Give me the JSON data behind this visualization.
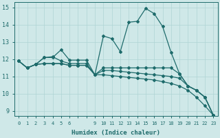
{
  "xlabel": "Humidex (Indice chaleur)",
  "bg_color": "#cfe8e8",
  "grid_color": "#afd4d4",
  "line_color": "#1e6b6b",
  "xlabels": [
    "0",
    "1",
    "2",
    "3",
    "4",
    "5",
    "6",
    "",
    "",
    "9",
    "10",
    "11",
    "12",
    "13",
    "14",
    "15",
    "16",
    "17",
    "18",
    "19",
    "20",
    "21",
    "22",
    "23"
  ],
  "ylim": [
    8.7,
    15.3
  ],
  "yticks": [
    9,
    10,
    11,
    12,
    13,
    14,
    15
  ],
  "line1_y": [
    11.9,
    11.5,
    11.7,
    12.1,
    12.1,
    12.55,
    11.95,
    11.95,
    11.95,
    11.1,
    13.35,
    13.2,
    12.45,
    14.15,
    14.2,
    14.95,
    14.65,
    13.9,
    12.4,
    11.15,
    10.45,
    10.2,
    9.8,
    8.75
  ],
  "line2_y": [
    11.9,
    11.5,
    11.7,
    12.1,
    12.15,
    11.9,
    11.75,
    11.75,
    11.75,
    11.1,
    11.5,
    11.5,
    11.5,
    11.5,
    11.5,
    11.5,
    11.5,
    11.5,
    11.5,
    11.15,
    10.45,
    10.2,
    9.8,
    8.75
  ],
  "line3_y": [
    11.9,
    11.5,
    11.7,
    11.75,
    11.75,
    11.75,
    11.65,
    11.65,
    11.65,
    11.1,
    11.35,
    11.35,
    11.3,
    11.25,
    11.2,
    11.15,
    11.1,
    11.05,
    11.0,
    10.9,
    10.45,
    10.2,
    9.8,
    8.75
  ],
  "line4_y": [
    11.9,
    11.5,
    11.7,
    11.75,
    11.75,
    11.75,
    11.65,
    11.65,
    11.65,
    11.1,
    11.1,
    11.05,
    11.0,
    10.95,
    10.9,
    10.85,
    10.8,
    10.7,
    10.6,
    10.45,
    10.2,
    9.8,
    9.3,
    8.75
  ]
}
